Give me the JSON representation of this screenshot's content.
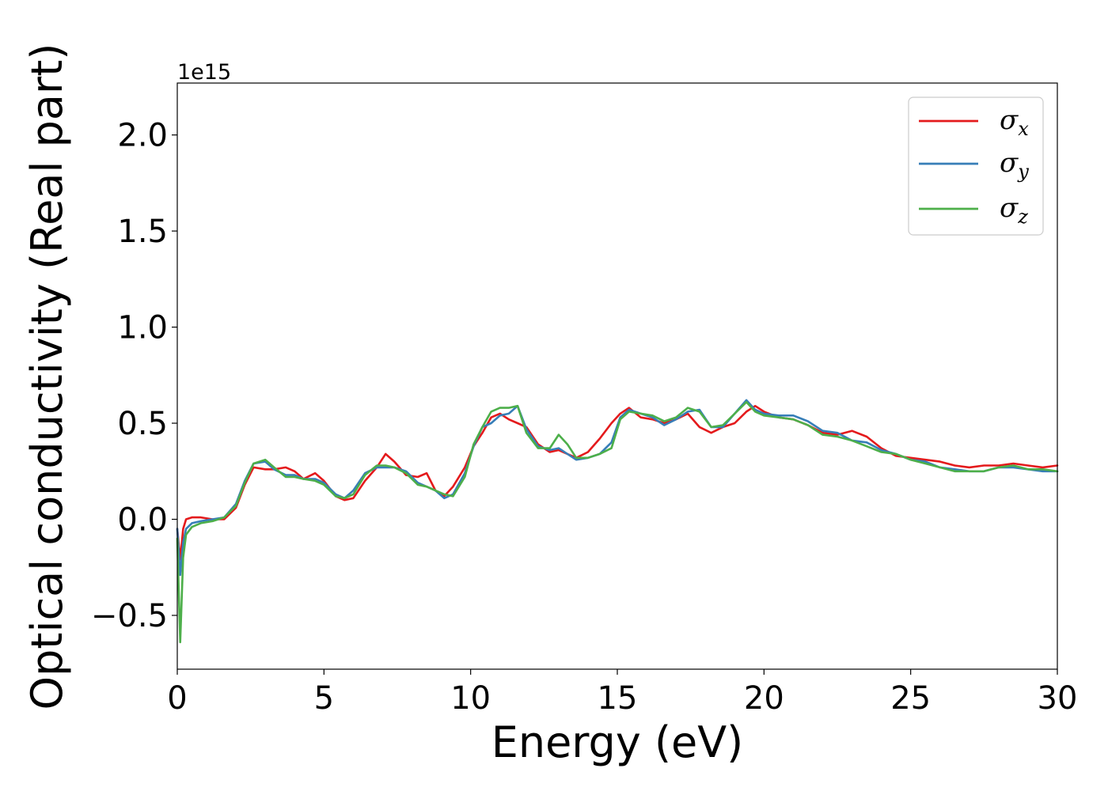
{
  "chart_data": {
    "type": "line",
    "xlabel": "Energy (eV)",
    "ylabel": "Optical conductivity (Real part)",
    "y_offset_label": "1e15",
    "xlim": [
      0,
      30
    ],
    "ylim": [
      -0.78,
      2.27
    ],
    "x_ticks": [
      0,
      5,
      10,
      15,
      20,
      25,
      30
    ],
    "x_tick_labels": [
      "0",
      "5",
      "10",
      "15",
      "20",
      "25",
      "30"
    ],
    "y_ticks": [
      -0.5,
      0.0,
      0.5,
      1.0,
      1.5,
      2.0
    ],
    "y_tick_labels": [
      "−0.5",
      "0.0",
      "0.5",
      "1.0",
      "1.5",
      "2.0"
    ],
    "grid": false,
    "legend_position": "top-right",
    "series": [
      {
        "name": "σ",
        "subscript": "x",
        "color": "#e41a1c",
        "x": [
          0.0,
          0.1,
          0.2,
          0.3,
          0.5,
          0.8,
          1.2,
          1.6,
          2.0,
          2.3,
          2.6,
          3.0,
          3.3,
          3.7,
          4.0,
          4.3,
          4.7,
          5.0,
          5.4,
          5.7,
          6.0,
          6.4,
          6.8,
          7.1,
          7.4,
          7.8,
          8.2,
          8.5,
          8.8,
          9.1,
          9.4,
          9.8,
          10.1,
          10.4,
          10.7,
          11.0,
          11.3,
          11.6,
          11.9,
          12.3,
          12.7,
          13.0,
          13.3,
          13.6,
          14.0,
          14.4,
          14.8,
          15.1,
          15.4,
          15.8,
          16.2,
          16.6,
          17.0,
          17.4,
          17.8,
          18.2,
          18.6,
          19.0,
          19.4,
          19.7,
          20.0,
          20.5,
          21.0,
          21.5,
          22.0,
          22.5,
          23.0,
          23.5,
          24.0,
          24.5,
          25.0,
          25.5,
          26.0,
          26.5,
          27.0,
          27.5,
          28.0,
          28.5,
          29.0,
          29.5,
          30.0
        ],
        "y": [
          -0.05,
          -0.21,
          -0.05,
          0.0,
          0.01,
          0.01,
          0.0,
          0.0,
          0.06,
          0.18,
          0.27,
          0.26,
          0.26,
          0.27,
          0.25,
          0.21,
          0.24,
          0.2,
          0.12,
          0.1,
          0.11,
          0.2,
          0.27,
          0.34,
          0.3,
          0.23,
          0.22,
          0.24,
          0.15,
          0.12,
          0.17,
          0.27,
          0.38,
          0.45,
          0.53,
          0.55,
          0.52,
          0.5,
          0.48,
          0.39,
          0.35,
          0.36,
          0.34,
          0.32,
          0.35,
          0.42,
          0.5,
          0.55,
          0.58,
          0.53,
          0.52,
          0.5,
          0.52,
          0.55,
          0.48,
          0.45,
          0.48,
          0.5,
          0.56,
          0.59,
          0.56,
          0.53,
          0.52,
          0.49,
          0.45,
          0.44,
          0.46,
          0.43,
          0.37,
          0.33,
          0.32,
          0.31,
          0.3,
          0.28,
          0.27,
          0.28,
          0.28,
          0.29,
          0.28,
          0.27,
          0.28
        ]
      },
      {
        "name": "σ",
        "subscript": "y",
        "color": "#377eb8",
        "x": [
          0.0,
          0.1,
          0.2,
          0.3,
          0.5,
          0.8,
          1.2,
          1.6,
          2.0,
          2.3,
          2.6,
          3.0,
          3.3,
          3.7,
          4.0,
          4.3,
          4.7,
          5.0,
          5.4,
          5.7,
          6.0,
          6.4,
          6.8,
          7.1,
          7.4,
          7.8,
          8.2,
          8.5,
          8.8,
          9.1,
          9.4,
          9.8,
          10.1,
          10.4,
          10.7,
          11.0,
          11.3,
          11.6,
          11.9,
          12.3,
          12.7,
          13.0,
          13.3,
          13.6,
          14.0,
          14.4,
          14.8,
          15.1,
          15.4,
          15.8,
          16.2,
          16.6,
          17.0,
          17.4,
          17.8,
          18.2,
          18.6,
          19.0,
          19.4,
          19.7,
          20.0,
          20.5,
          21.0,
          21.5,
          22.0,
          22.5,
          23.0,
          23.5,
          24.0,
          24.5,
          25.0,
          25.5,
          26.0,
          26.5,
          27.0,
          27.5,
          28.0,
          28.5,
          29.0,
          29.5,
          30.0
        ],
        "y": [
          -0.05,
          -0.29,
          -0.12,
          -0.05,
          -0.02,
          -0.01,
          0.0,
          0.01,
          0.08,
          0.2,
          0.29,
          0.3,
          0.26,
          0.23,
          0.23,
          0.21,
          0.21,
          0.19,
          0.13,
          0.11,
          0.15,
          0.24,
          0.27,
          0.27,
          0.27,
          0.25,
          0.19,
          0.17,
          0.15,
          0.11,
          0.13,
          0.24,
          0.38,
          0.48,
          0.5,
          0.54,
          0.55,
          0.59,
          0.47,
          0.38,
          0.36,
          0.37,
          0.34,
          0.31,
          0.32,
          0.34,
          0.4,
          0.53,
          0.57,
          0.55,
          0.53,
          0.49,
          0.52,
          0.56,
          0.57,
          0.48,
          0.48,
          0.55,
          0.62,
          0.57,
          0.55,
          0.54,
          0.54,
          0.51,
          0.46,
          0.45,
          0.41,
          0.4,
          0.36,
          0.34,
          0.31,
          0.3,
          0.27,
          0.26,
          0.25,
          0.25,
          0.27,
          0.27,
          0.26,
          0.25,
          0.25
        ]
      },
      {
        "name": "σ",
        "subscript": "z",
        "color": "#4daf4a",
        "x": [
          0.0,
          0.1,
          0.2,
          0.3,
          0.5,
          0.8,
          1.2,
          1.6,
          2.0,
          2.3,
          2.6,
          3.0,
          3.3,
          3.7,
          4.0,
          4.3,
          4.7,
          5.0,
          5.4,
          5.7,
          6.0,
          6.4,
          6.8,
          7.1,
          7.4,
          7.8,
          8.2,
          8.5,
          8.8,
          9.1,
          9.4,
          9.8,
          10.1,
          10.4,
          10.7,
          11.0,
          11.3,
          11.6,
          11.9,
          12.3,
          12.7,
          13.0,
          13.3,
          13.6,
          14.0,
          14.4,
          14.8,
          15.1,
          15.4,
          15.8,
          16.2,
          16.6,
          17.0,
          17.4,
          17.8,
          18.2,
          18.6,
          19.0,
          19.4,
          19.7,
          20.0,
          20.5,
          21.0,
          21.5,
          22.0,
          22.5,
          23.0,
          23.5,
          24.0,
          24.5,
          25.0,
          25.5,
          26.0,
          26.5,
          27.0,
          27.5,
          28.0,
          28.5,
          29.0,
          29.5,
          30.0
        ],
        "y": [
          -0.1,
          -0.64,
          -0.2,
          -0.08,
          -0.04,
          -0.02,
          -0.01,
          0.01,
          0.07,
          0.19,
          0.29,
          0.31,
          0.27,
          0.22,
          0.22,
          0.21,
          0.2,
          0.18,
          0.12,
          0.11,
          0.13,
          0.23,
          0.28,
          0.28,
          0.27,
          0.24,
          0.18,
          0.17,
          0.15,
          0.13,
          0.12,
          0.22,
          0.39,
          0.48,
          0.56,
          0.58,
          0.58,
          0.59,
          0.45,
          0.37,
          0.37,
          0.44,
          0.39,
          0.32,
          0.32,
          0.34,
          0.37,
          0.52,
          0.56,
          0.55,
          0.54,
          0.51,
          0.53,
          0.58,
          0.56,
          0.48,
          0.49,
          0.55,
          0.61,
          0.56,
          0.54,
          0.53,
          0.52,
          0.49,
          0.44,
          0.43,
          0.41,
          0.38,
          0.35,
          0.34,
          0.31,
          0.29,
          0.27,
          0.25,
          0.25,
          0.25,
          0.27,
          0.28,
          0.26,
          0.26,
          0.25
        ]
      }
    ]
  }
}
